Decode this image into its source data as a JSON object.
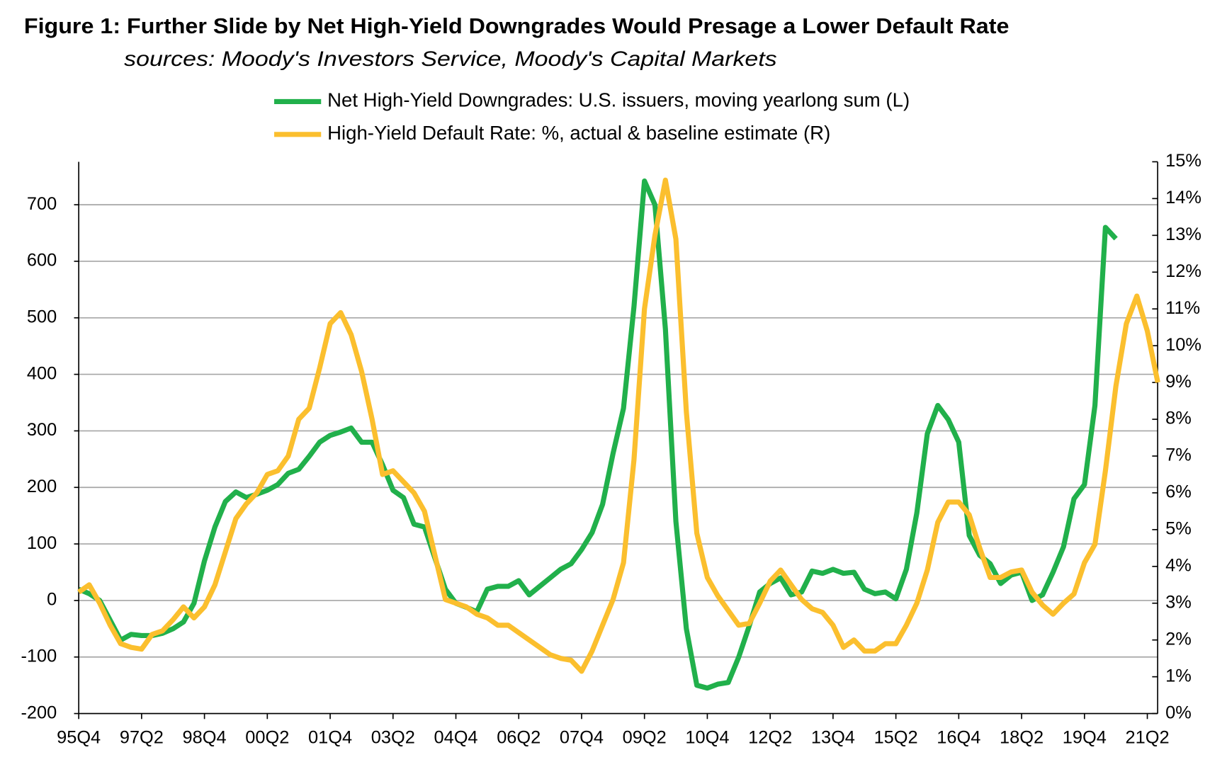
{
  "chart_data": {
    "type": "line",
    "title": "Figure 1: Further Slide by Net High-Yield Downgrades Would Presage a Lower Default Rate",
    "subtitle": "sources: Moody's Investors Service, Moody's Capital Markets",
    "categories": [
      "95Q4",
      null,
      null,
      null,
      null,
      null,
      "97Q2",
      null,
      null,
      null,
      null,
      null,
      "98Q4",
      null,
      null,
      null,
      null,
      null,
      "00Q2",
      null,
      null,
      null,
      null,
      null,
      "01Q4",
      null,
      null,
      null,
      null,
      null,
      "03Q2",
      null,
      null,
      null,
      null,
      null,
      "04Q4",
      null,
      null,
      null,
      null,
      null,
      "06Q2",
      null,
      null,
      null,
      null,
      null,
      "07Q4",
      null,
      null,
      null,
      null,
      null,
      "09Q2",
      null,
      null,
      null,
      null,
      null,
      "10Q4",
      null,
      null,
      null,
      null,
      null,
      "12Q2",
      null,
      null,
      null,
      null,
      null,
      "13Q4",
      null,
      null,
      null,
      null,
      null,
      "15Q2",
      null,
      null,
      null,
      null,
      null,
      "16Q4",
      null,
      null,
      null,
      null,
      null,
      "18Q2",
      null,
      null,
      null,
      null,
      null,
      "19Q4",
      null,
      null,
      null,
      null,
      null,
      "21Q2",
      null
    ],
    "series": [
      {
        "name": "Net High-Yield Downgrades: U.S. issuers, moving yearlong sum (L)",
        "color": "#21b04b",
        "axis": "y",
        "values": [
          20,
          12,
          0,
          -35,
          -70,
          -60,
          -62,
          -62,
          -58,
          -50,
          -38,
          -5,
          70,
          130,
          175,
          192,
          182,
          188,
          195,
          205,
          225,
          232,
          255,
          280,
          292,
          298,
          305,
          280,
          280,
          240,
          195,
          182,
          135,
          130,
          75,
          20,
          -5,
          -12,
          -20,
          20,
          25,
          25,
          35,
          10,
          25,
          40,
          55,
          65,
          90,
          120,
          170,
          260,
          340,
          520,
          742,
          700,
          480,
          140,
          -50,
          -150,
          -155,
          -148,
          -145,
          -100,
          -45,
          15,
          30,
          40,
          10,
          15,
          52,
          48,
          55,
          48,
          50,
          20,
          12,
          15,
          3,
          55,
          155,
          295,
          345,
          320,
          280,
          115,
          80,
          65,
          30,
          45,
          50,
          0,
          10,
          50,
          95,
          180,
          205,
          345,
          660,
          640,
          null,
          null,
          null,
          null
        ]
      },
      {
        "name": "High-Yield Default Rate: %, actual & baseline estimate (R)",
        "color": "#fbbf2e",
        "axis": "y2",
        "values": [
          3.3,
          3.5,
          3.0,
          2.4,
          1.9,
          1.8,
          1.75,
          2.15,
          2.25,
          2.55,
          2.9,
          2.6,
          2.9,
          3.5,
          4.4,
          5.3,
          5.7,
          6.0,
          6.5,
          6.6,
          7.0,
          8.0,
          8.3,
          9.4,
          10.6,
          10.9,
          10.3,
          9.3,
          8.0,
          6.5,
          6.6,
          6.3,
          6.0,
          5.5,
          4.3,
          3.1,
          3.0,
          2.9,
          2.7,
          2.6,
          2.4,
          2.4,
          2.2,
          2.0,
          1.8,
          1.6,
          1.5,
          1.45,
          1.15,
          1.7,
          2.4,
          3.1,
          4.1,
          6.9,
          11.0,
          13.0,
          14.5,
          12.9,
          8.2,
          4.9,
          3.7,
          3.2,
          2.8,
          2.4,
          2.45,
          3.0,
          3.6,
          3.9,
          3.5,
          3.1,
          2.85,
          2.75,
          2.4,
          1.8,
          2.0,
          1.7,
          1.7,
          1.9,
          1.9,
          2.4,
          3.0,
          3.9,
          5.2,
          5.75,
          5.75,
          5.4,
          4.5,
          3.7,
          3.7,
          3.85,
          3.9,
          3.3,
          2.95,
          2.7,
          3.0,
          3.25,
          4.1,
          4.6,
          6.6,
          8.9,
          10.6,
          11.35,
          10.4,
          9.0
        ]
      }
    ],
    "ylim": [
      -200,
      776
    ],
    "yticks": [
      -200,
      -100,
      0,
      100,
      200,
      300,
      400,
      500,
      600,
      700
    ],
    "y2lim": [
      0,
      15
    ],
    "y2ticks": [
      {
        "value": 0,
        "label": "0%"
      },
      {
        "value": 1,
        "label": "1%"
      },
      {
        "value": 2,
        "label": "2%"
      },
      {
        "value": 3,
        "label": "3%"
      },
      {
        "value": 4,
        "label": "4%"
      },
      {
        "value": 5,
        "label": "5%"
      },
      {
        "value": 6,
        "label": "6%"
      },
      {
        "value": 7,
        "label": "7%"
      },
      {
        "value": 8,
        "label": "8%"
      },
      {
        "value": 9,
        "label": "9%"
      },
      {
        "value": 10,
        "label": "10%"
      },
      {
        "value": 11,
        "label": "11%"
      },
      {
        "value": 12,
        "label": "12%"
      },
      {
        "value": 13,
        "label": "13%"
      },
      {
        "value": 14,
        "label": "14%"
      },
      {
        "value": 15,
        "label": "15%"
      }
    ],
    "grid": true,
    "legend": "top"
  }
}
